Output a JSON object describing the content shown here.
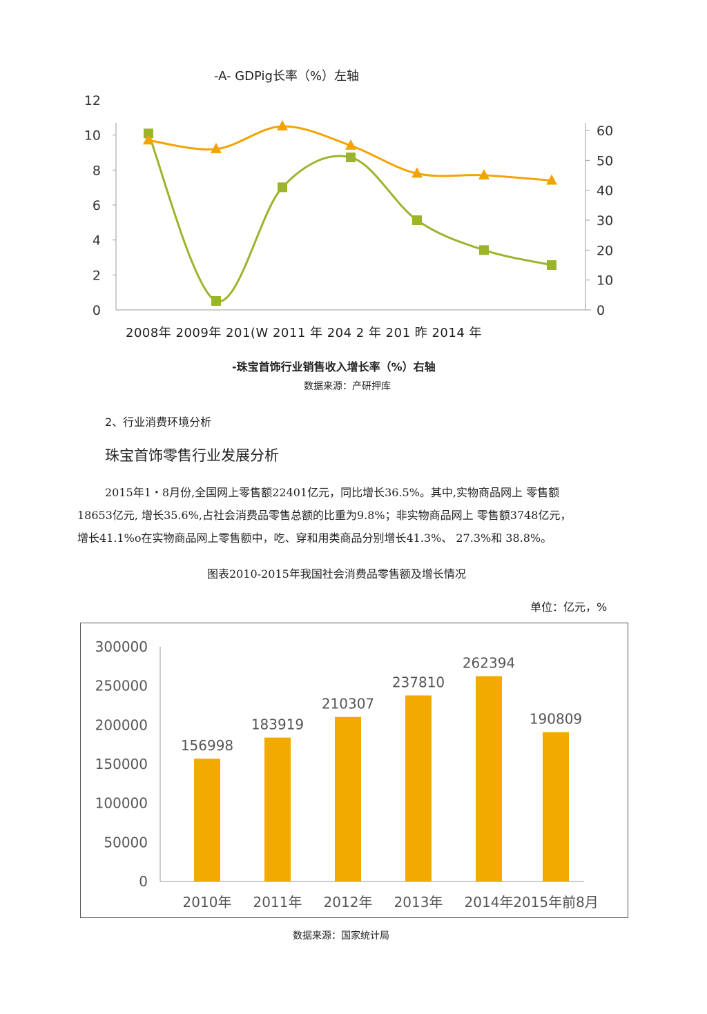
{
  "chart1": {
    "legend_left": "-A- GDPig长率（%）左轴",
    "legend_right": "-珠宝首饰行业销售收入增长率（%）右轴",
    "source": "数据来源：产研押库",
    "x_labels_text": "2008年 2009年 201(W 2011 年 204 2 年 201 昨 2014 年",
    "colors": {
      "gdp": "#f2a300",
      "jewelry": "#9ab42b",
      "axis": "#999999"
    }
  },
  "section": {
    "heading": "2、行业消费环境分析",
    "subheading": "珠宝首饰零售行业发展分析",
    "paragraph_lines": [
      "2015年1・8月份,全国网上零售额22401亿元，同比增长36.5%。其中,实物商品网上  零售额",
      "18653亿元, 增长35.6%,占社会消费品零售总额的比重为9.8%；非实物商品网上   零售额3748亿元，",
      "增长41.1%o在实物商品网上零售额中，吃、穿和用类商品分别增长41.3%、  27.3%和  38.8%。"
    ]
  },
  "chart2": {
    "title": "图表2010-2015年我国社会消费品零售额及增长情况",
    "unit": "单位：亿元，%",
    "source": "数据来源：国家统计局",
    "bar_color": "#f2aa00"
  },
  "chart_data": [
    {
      "type": "line",
      "title": "",
      "categories": [
        "2008",
        "2009",
        "2010",
        "2011",
        "2012",
        "2013",
        "2014"
      ],
      "y_left": {
        "ylim": [
          0,
          12
        ],
        "ticks": [
          0,
          2,
          4,
          6,
          8,
          10,
          12
        ]
      },
      "y_right": {
        "ylim": [
          0,
          60
        ],
        "ticks": [
          0,
          10,
          20,
          30,
          40,
          50,
          60
        ]
      },
      "series": [
        {
          "name": "GDPig长率（%）左轴",
          "axis": "left",
          "marker": "triangle",
          "values": [
            9.7,
            9.2,
            10.5,
            9.4,
            7.8,
            7.7,
            7.4
          ]
        },
        {
          "name": "珠宝首饰行业销售收入增长率（%）右轴",
          "axis": "right",
          "marker": "square",
          "smooth": true,
          "values": [
            59,
            3,
            41,
            51,
            30,
            20,
            15
          ]
        }
      ],
      "grid": false
    },
    {
      "type": "bar",
      "title": "",
      "categories": [
        "2010年",
        "2011年",
        "2012年",
        "2013年",
        "2014年",
        "2015年前8月"
      ],
      "values": [
        156998,
        183919,
        210307,
        237810,
        262394,
        190809
      ],
      "ylim": [
        0,
        300000
      ],
      "yticks": [
        0,
        50000,
        100000,
        150000,
        200000,
        250000,
        300000
      ],
      "data_labels": true,
      "grid": false
    }
  ]
}
